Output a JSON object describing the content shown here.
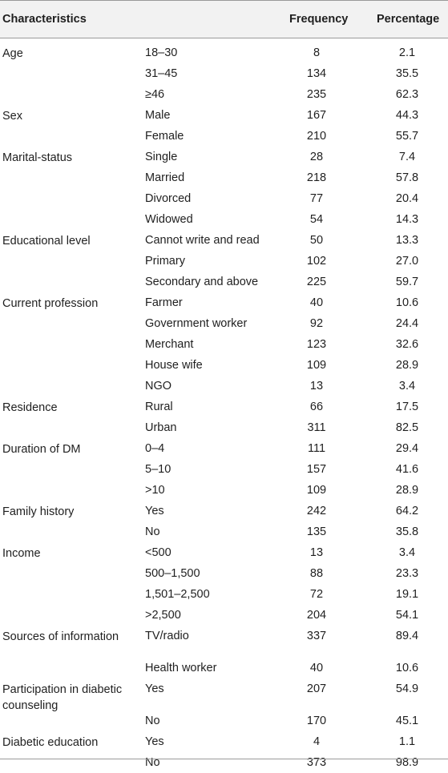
{
  "header": {
    "characteristics": "Characteristics",
    "frequency": "Frequency",
    "percentage": "Percentage"
  },
  "rows": [
    {
      "group": "Age",
      "category": "18–30",
      "frequency": "8",
      "percentage": "2.1"
    },
    {
      "group": "",
      "category": "31–45",
      "frequency": "134",
      "percentage": "35.5"
    },
    {
      "group": "",
      "category": "≥46",
      "frequency": "235",
      "percentage": "62.3"
    },
    {
      "group": "Sex",
      "category": "Male",
      "frequency": "167",
      "percentage": "44.3"
    },
    {
      "group": "",
      "category": "Female",
      "frequency": "210",
      "percentage": "55.7"
    },
    {
      "group": "Marital-status",
      "category": "Single",
      "frequency": "28",
      "percentage": "7.4"
    },
    {
      "group": "",
      "category": "Married",
      "frequency": "218",
      "percentage": "57.8"
    },
    {
      "group": "",
      "category": "Divorced",
      "frequency": "77",
      "percentage": "20.4"
    },
    {
      "group": "",
      "category": "Widowed",
      "frequency": "54",
      "percentage": "14.3"
    },
    {
      "group": "Educational level",
      "category": "Cannot write and read",
      "frequency": "50",
      "percentage": "13.3"
    },
    {
      "group": "",
      "category": "Primary",
      "frequency": "102",
      "percentage": "27.0"
    },
    {
      "group": "",
      "category": "Secondary and above",
      "frequency": "225",
      "percentage": "59.7"
    },
    {
      "group": "Current profession",
      "category": "Farmer",
      "frequency": "40",
      "percentage": "10.6"
    },
    {
      "group": "",
      "category": "Government worker",
      "frequency": "92",
      "percentage": "24.4"
    },
    {
      "group": "",
      "category": "Merchant",
      "frequency": "123",
      "percentage": "32.6"
    },
    {
      "group": "",
      "category": "House wife",
      "frequency": "109",
      "percentage": "28.9"
    },
    {
      "group": "",
      "category": "NGO",
      "frequency": "13",
      "percentage": "3.4"
    },
    {
      "group": "Residence",
      "category": "Rural",
      "frequency": "66",
      "percentage": "17.5"
    },
    {
      "group": "",
      "category": "Urban",
      "frequency": "311",
      "percentage": "82.5"
    },
    {
      "group": "Duration of DM",
      "category": "0–4",
      "frequency": "111",
      "percentage": "29.4"
    },
    {
      "group": "",
      "category": "5–10",
      "frequency": "157",
      "percentage": "41.6"
    },
    {
      "group": "",
      "category": ">10",
      "frequency": "109",
      "percentage": "28.9"
    },
    {
      "group": "Family history",
      "category": "Yes",
      "frequency": "242",
      "percentage": "64.2"
    },
    {
      "group": "",
      "category": "No",
      "frequency": "135",
      "percentage": "35.8"
    },
    {
      "group": "Income",
      "category": "<500",
      "frequency": "13",
      "percentage": "3.4"
    },
    {
      "group": "",
      "category": "500–1,500",
      "frequency": "88",
      "percentage": "23.3"
    },
    {
      "group": "",
      "category": "1,501–2,500",
      "frequency": "72",
      "percentage": "19.1"
    },
    {
      "group": "",
      "category": ">2,500",
      "frequency": "204",
      "percentage": "54.1"
    },
    {
      "group": "Sources of information",
      "category": "TV/radio",
      "frequency": "337",
      "percentage": "89.4",
      "tall": true
    },
    {
      "group": "",
      "category": "Health worker",
      "frequency": "40",
      "percentage": "10.6"
    },
    {
      "group": "Participation in diabetic counseling",
      "category": "Yes",
      "frequency": "207",
      "percentage": "54.9",
      "tall": true
    },
    {
      "group": "",
      "category": "No",
      "frequency": "170",
      "percentage": "45.1"
    },
    {
      "group": "Diabetic education",
      "category": "Yes",
      "frequency": "4",
      "percentage": "1.1"
    },
    {
      "group": "",
      "category": "No",
      "frequency": "373",
      "percentage": "98.9"
    }
  ]
}
